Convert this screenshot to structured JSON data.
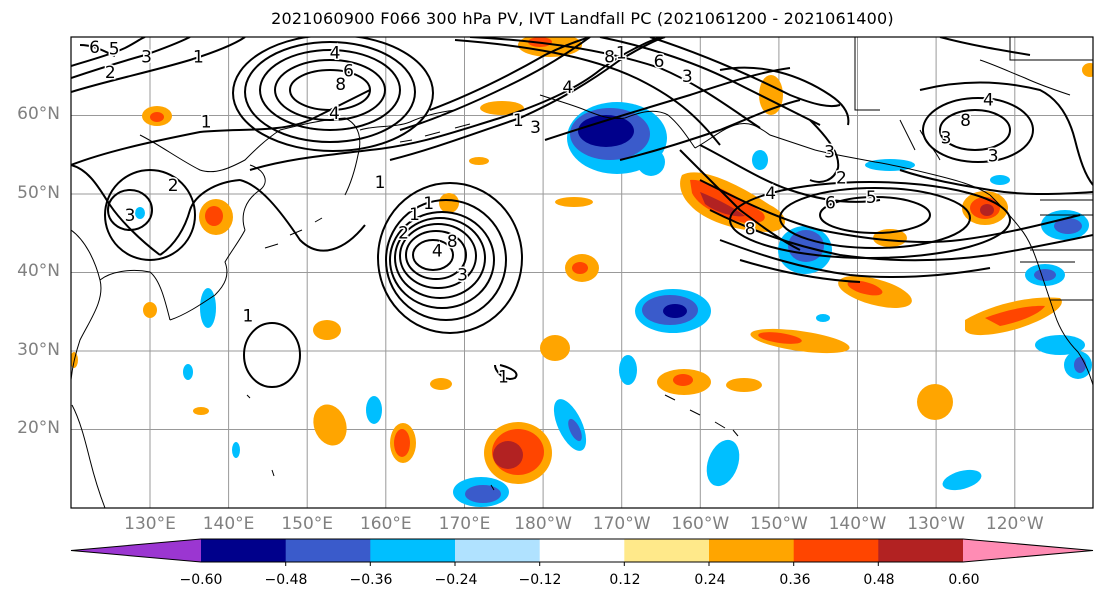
{
  "title": "2021060900 F066 300 hPa PV, IVT Landfall PC (2021061200 - 2021061400)",
  "map": {
    "lon_range": [
      120,
      250
    ],
    "lat_range": [
      10,
      70
    ],
    "lat_labels": [
      "20°N",
      "30°N",
      "40°N",
      "50°N",
      "60°N"
    ],
    "lon_labels": [
      "130°E",
      "140°E",
      "150°E",
      "160°E",
      "170°E",
      "180°W",
      "170°W",
      "160°W",
      "150°W",
      "140°W",
      "130°W",
      "120°W"
    ],
    "gridlines": true,
    "contour_color": "#000000",
    "contour_labels": [
      {
        "text": "6",
        "lon": 123.0,
        "lat": 68.6
      },
      {
        "text": "5",
        "lon": 125.5,
        "lat": 68.4
      },
      {
        "text": "2",
        "lon": 125.0,
        "lat": 65.4
      },
      {
        "text": "3",
        "lon": 129.6,
        "lat": 67.4
      },
      {
        "text": "1",
        "lon": 136.2,
        "lat": 67.4
      },
      {
        "text": "4",
        "lon": 153.6,
        "lat": 67.9
      },
      {
        "text": "6",
        "lon": 155.3,
        "lat": 65.6
      },
      {
        "text": "8",
        "lon": 154.3,
        "lat": 63.9
      },
      {
        "text": "4",
        "lon": 153.5,
        "lat": 60.2
      },
      {
        "text": "1",
        "lon": 137.2,
        "lat": 59.1
      },
      {
        "text": "2",
        "lon": 133.0,
        "lat": 51.0
      },
      {
        "text": "3",
        "lon": 127.5,
        "lat": 47.2
      },
      {
        "text": "1",
        "lon": 159.3,
        "lat": 51.4
      },
      {
        "text": "3",
        "lon": 179.1,
        "lat": 58.4
      },
      {
        "text": "1",
        "lon": 176.9,
        "lat": 59.3
      },
      {
        "text": "8",
        "lon": 188.5,
        "lat": 67.4
      },
      {
        "text": "1",
        "lon": 190.0,
        "lat": 67.9
      },
      {
        "text": "4",
        "lon": 183.2,
        "lat": 63.5
      },
      {
        "text": "6",
        "lon": 194.8,
        "lat": 66.8
      },
      {
        "text": "3",
        "lon": 198.4,
        "lat": 64.9
      },
      {
        "text": "1",
        "lon": 165.5,
        "lat": 48.7
      },
      {
        "text": "1",
        "lon": 163.7,
        "lat": 47.3
      },
      {
        "text": "2",
        "lon": 162.3,
        "lat": 45.0
      },
      {
        "text": "8",
        "lon": 168.5,
        "lat": 43.9
      },
      {
        "text": "4",
        "lon": 166.6,
        "lat": 42.7
      },
      {
        "text": "3",
        "lon": 169.8,
        "lat": 39.6
      },
      {
        "text": "1",
        "lon": 142.5,
        "lat": 34.4
      },
      {
        "text": "1",
        "lon": 175.0,
        "lat": 26.6
      },
      {
        "text": "3",
        "lon": 216.5,
        "lat": 55.3
      },
      {
        "text": "4",
        "lon": 209.0,
        "lat": 50.0
      },
      {
        "text": "2",
        "lon": 218.0,
        "lat": 52.0
      },
      {
        "text": "5",
        "lon": 221.8,
        "lat": 49.5
      },
      {
        "text": "6",
        "lon": 216.6,
        "lat": 48.8
      },
      {
        "text": "8",
        "lon": 206.4,
        "lat": 45.5
      },
      {
        "text": "4",
        "lon": 236.7,
        "lat": 61.9
      },
      {
        "text": "8",
        "lon": 233.8,
        "lat": 59.3
      },
      {
        "text": "3",
        "lon": 231.3,
        "lat": 57.1
      },
      {
        "text": "3",
        "lon": 237.3,
        "lat": 54.8
      }
    ]
  },
  "colorbar": {
    "ticks": [
      "−0.60",
      "−0.48",
      "−0.36",
      "−0.24",
      "−0.12",
      "0.12",
      "0.24",
      "0.36",
      "0.48",
      "0.60"
    ],
    "colors": [
      "#9b36d1",
      "#00008b",
      "#3a5bcb",
      "#00bfff",
      "#b0e2ff",
      "#ffffff",
      "#ffe98a",
      "#ffa500",
      "#ff4500",
      "#b22222",
      "#ff8cb4"
    ]
  }
}
